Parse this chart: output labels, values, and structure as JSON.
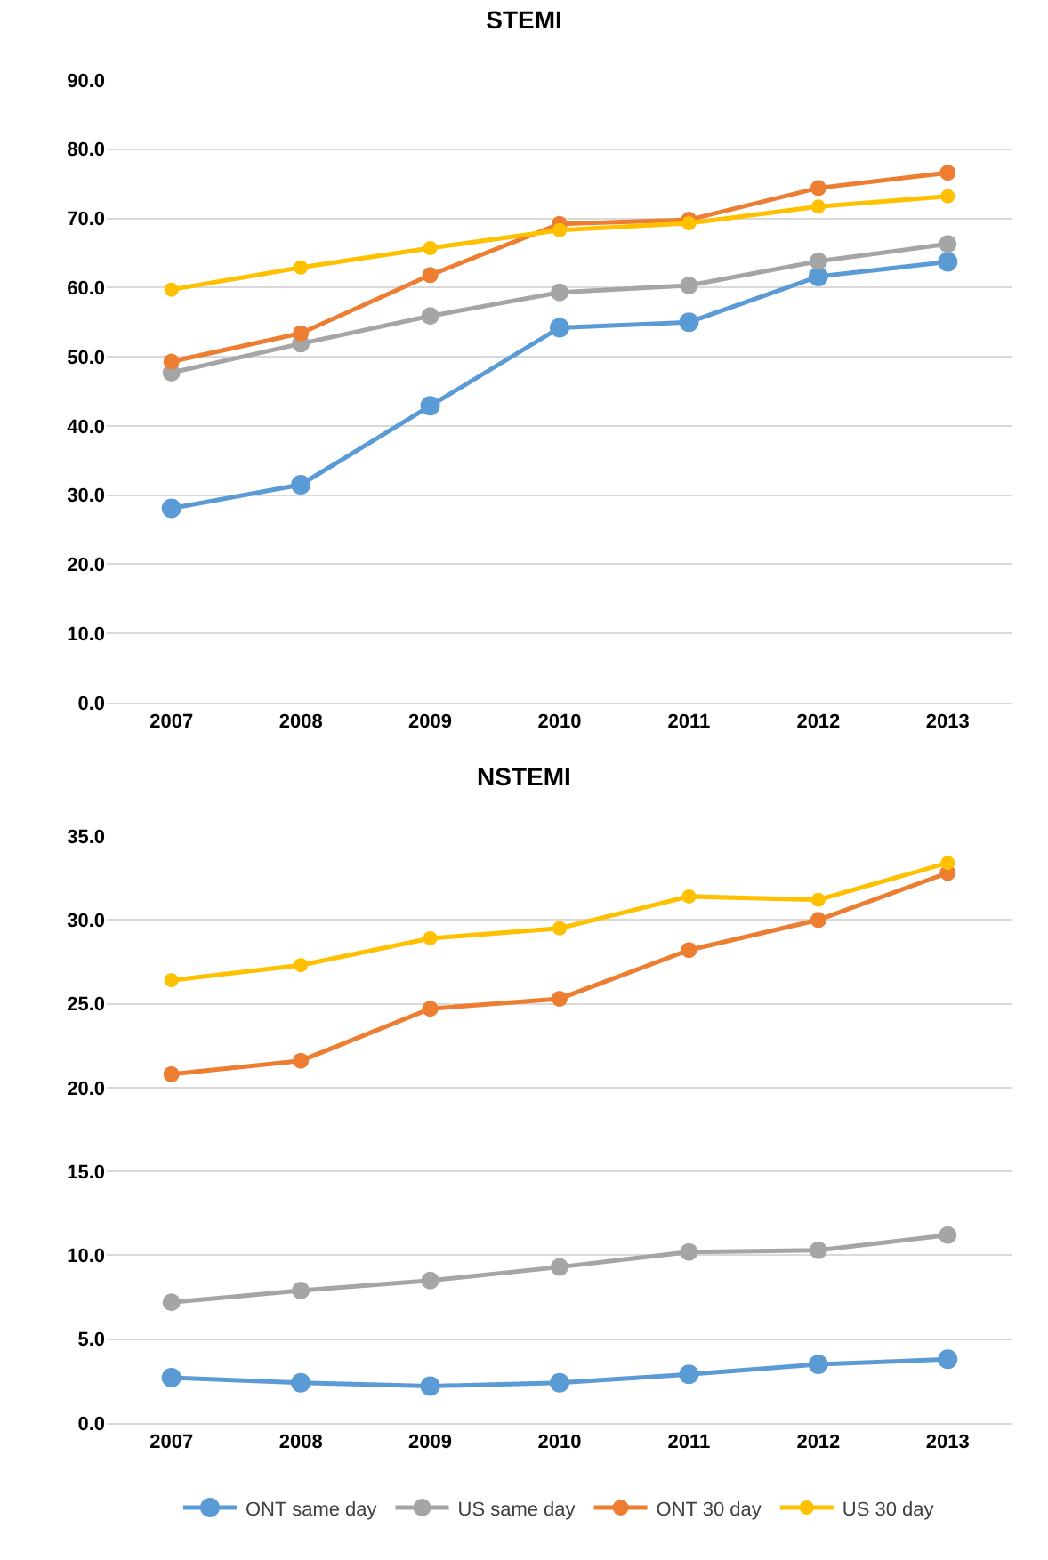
{
  "chart_data": [
    {
      "type": "line",
      "title": "STEMI",
      "categories": [
        "2007",
        "2008",
        "2009",
        "2010",
        "2011",
        "2012",
        "2013"
      ],
      "ylim": [
        0,
        90
      ],
      "yticks": [
        {
          "value": 0,
          "label": "0.0"
        },
        {
          "value": 10,
          "label": "10.0"
        },
        {
          "value": 20,
          "label": "20.0"
        },
        {
          "value": 30,
          "label": "30.0"
        },
        {
          "value": 40,
          "label": "40.0"
        },
        {
          "value": 50,
          "label": "50.0"
        },
        {
          "value": 60,
          "label": "60.0"
        },
        {
          "value": 70,
          "label": "70.0"
        },
        {
          "value": 80,
          "label": "80.0"
        },
        {
          "value": 90,
          "label": "90.0"
        }
      ],
      "grid": "y",
      "legend": false,
      "marker": "circle",
      "line_style": "solid",
      "series": [
        {
          "color": "#5b9bd5",
          "values": [
            28.1,
            31.5,
            42.9,
            54.2,
            55.0,
            61.6,
            63.7
          ]
        },
        {
          "color": "#a5a5a5",
          "values": [
            47.7,
            51.9,
            55.9,
            59.3,
            60.3,
            63.8,
            66.3
          ]
        },
        {
          "color": "#ed7d31",
          "values": [
            49.3,
            53.4,
            61.8,
            69.2,
            69.8,
            74.4,
            76.6
          ]
        },
        {
          "color": "#ffc000",
          "values": [
            59.7,
            62.9,
            65.7,
            68.3,
            69.3,
            71.7,
            73.2
          ]
        }
      ]
    },
    {
      "type": "line",
      "title": "NSTEMI",
      "categories": [
        "2007",
        "2008",
        "2009",
        "2010",
        "2011",
        "2012",
        "2013"
      ],
      "ylim": [
        0,
        35
      ],
      "yticks": [
        {
          "value": 0,
          "label": "0.0"
        },
        {
          "value": 5,
          "label": "5.0"
        },
        {
          "value": 10,
          "label": "10.0"
        },
        {
          "value": 15,
          "label": "15.0"
        },
        {
          "value": 20,
          "label": "20.0"
        },
        {
          "value": 25,
          "label": "25.0"
        },
        {
          "value": 30,
          "label": "30.0"
        },
        {
          "value": 35,
          "label": "35.0"
        }
      ],
      "grid": "y",
      "legend": "bottom",
      "marker": "circle",
      "line_style": "solid",
      "series": [
        {
          "name": "ONT same day",
          "color": "#5b9bd5",
          "values": [
            2.7,
            2.4,
            2.2,
            2.4,
            2.9,
            3.5,
            3.8
          ]
        },
        {
          "name": "US same day",
          "color": "#a5a5a5",
          "values": [
            7.2,
            7.9,
            8.5,
            9.3,
            10.2,
            10.3,
            11.2
          ]
        },
        {
          "name": "ONT 30 day",
          "color": "#ed7d31",
          "values": [
            20.8,
            21.6,
            24.7,
            25.3,
            28.2,
            30.0,
            32.8
          ]
        },
        {
          "name": "US 30 day",
          "color": "#ffc000",
          "values": [
            26.4,
            27.3,
            28.9,
            29.5,
            31.4,
            31.2,
            33.4
          ]
        }
      ]
    }
  ]
}
